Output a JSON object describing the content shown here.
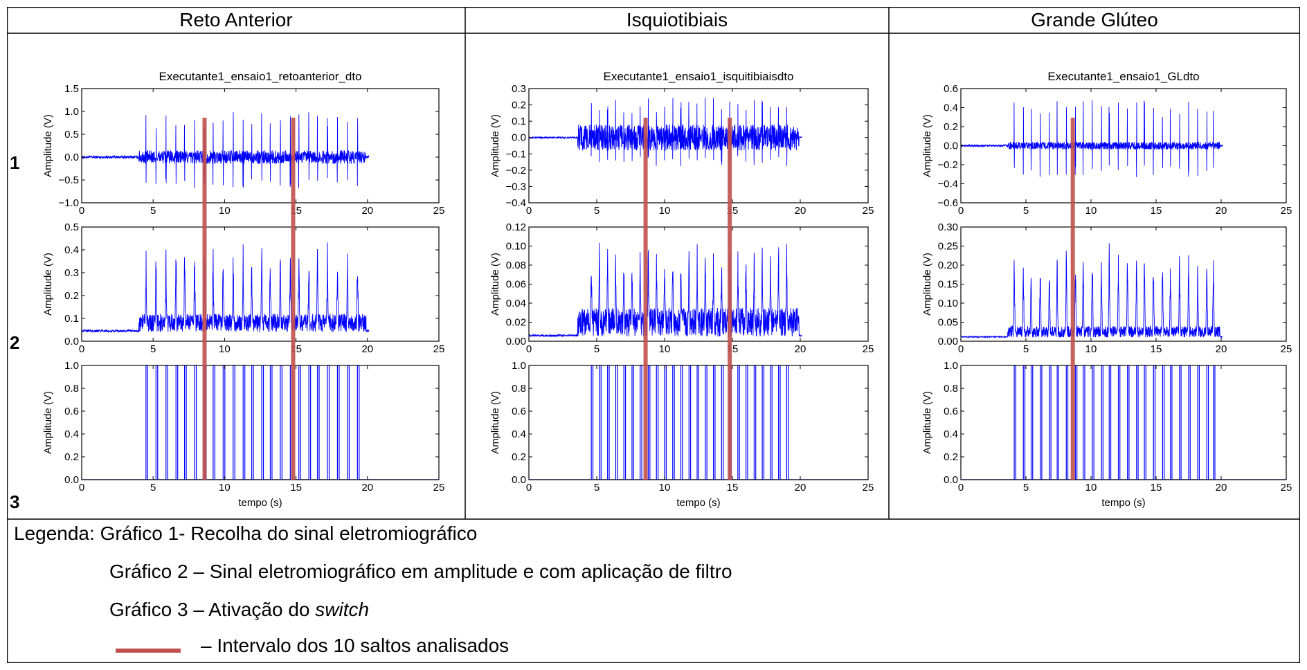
{
  "headers": [
    "Reto Anterior",
    "Isquiotibiais",
    "Grande Glúteo"
  ],
  "row_numbers": [
    "1",
    "2",
    "3"
  ],
  "legend": {
    "line1": "Legenda: Gráfico 1- Recolha do sinal eletromiográfico",
    "line2": "Gráfico 2 – Sinal eletromiográfico em amplitude e com aplicação de filtro",
    "line3_prefix": "Gráfico 3 – Ativação do ",
    "line3_italic": "switch",
    "line4": "– Intervalo dos 10 saltos analisados",
    "marker_color": "#c0504d"
  },
  "colors": {
    "signal": "#0000ff",
    "marker": "#c0504d",
    "border": "#000000"
  },
  "chart_data": [
    {
      "type": "line",
      "muscle": "Reto Anterior",
      "title": "Executante1_ensaio1_retoanterior_dto",
      "xlabel": "tempo (s)",
      "ylabel": "Amplitude (V)",
      "xlim": [
        0,
        25
      ],
      "xticks": [
        "0",
        "5",
        "10",
        "15",
        "20",
        "25"
      ],
      "markers_x": [
        8.6,
        14.8
      ],
      "onset": 4.0,
      "end": 20.1,
      "jump_times": [
        4.5,
        5.2,
        5.9,
        6.6,
        7.2,
        7.9,
        8.6,
        9.2,
        9.9,
        10.6,
        11.3,
        11.9,
        12.6,
        13.2,
        13.9,
        14.6,
        15.2,
        15.9,
        16.5,
        17.2,
        17.9,
        18.6,
        19.3
      ],
      "panels": [
        {
          "name": "raw emg",
          "ylim": [
            -1.0,
            1.5
          ],
          "yticks": [
            "1.5",
            "1.0",
            "0.5",
            "0.0",
            "−0.5",
            "−1.0"
          ],
          "baseline": 0.0,
          "noise_pre": 0.03,
          "noise_active": 0.15,
          "peak": 1.0
        },
        {
          "name": "envelope",
          "ylim": [
            0.0,
            0.5
          ],
          "yticks": [
            "0.5",
            "0.4",
            "0.3",
            "0.2",
            "0.1",
            "0.0"
          ],
          "baseline": 0.04,
          "noise_pre": 0.01,
          "noise_active": 0.08,
          "peak": 0.45
        },
        {
          "name": "switch",
          "ylim": [
            0.0,
            1.0
          ],
          "yticks": [
            "1.0",
            "0.8",
            "0.6",
            "0.4",
            "0.2",
            "0.0"
          ],
          "switch_high": 1.0
        }
      ]
    },
    {
      "type": "line",
      "muscle": "Isquiotibiais",
      "title": "Executante1_ensaio1_isquitibiaisdto",
      "xlabel": "tempo (s)",
      "ylabel": "Amplitude (V)",
      "xlim": [
        0,
        25
      ],
      "xticks": [
        "0",
        "5",
        "10",
        "15",
        "20",
        "25"
      ],
      "markers_x": [
        8.6,
        14.8
      ],
      "onset": 3.6,
      "end": 20.1,
      "jump_times": [
        4.6,
        5.2,
        5.8,
        6.4,
        7.0,
        7.6,
        8.2,
        8.8,
        9.4,
        10.0,
        10.6,
        11.2,
        11.8,
        12.4,
        13.0,
        13.6,
        14.2,
        14.8,
        15.4,
        16.0,
        16.6,
        17.2,
        17.8,
        18.4,
        19.0
      ],
      "panels": [
        {
          "name": "raw emg",
          "ylim": [
            -0.4,
            0.3
          ],
          "yticks": [
            "0.3",
            "0.2",
            "0.1",
            "0.0",
            "−0.1",
            "−0.2",
            "−0.3",
            "−0.4"
          ],
          "baseline": 0.0,
          "noise_pre": 0.005,
          "noise_active": 0.08,
          "peak": 0.25
        },
        {
          "name": "envelope",
          "ylim": [
            0.0,
            0.12
          ],
          "yticks": [
            "0.12",
            "0.10",
            "0.08",
            "0.06",
            "0.04",
            "0.02",
            "0.00"
          ],
          "baseline": 0.005,
          "noise_pre": 0.002,
          "noise_active": 0.03,
          "peak": 0.11
        },
        {
          "name": "switch",
          "ylim": [
            0.0,
            1.0
          ],
          "yticks": [
            "1.0",
            "0.8",
            "0.6",
            "0.4",
            "0.2",
            "0.0"
          ],
          "switch_high": 1.0
        }
      ]
    },
    {
      "type": "line",
      "muscle": "Grande Glúteo",
      "title": "Executante1_ensaio1_GLdto",
      "xlabel": "tempo (s)",
      "ylabel": "Amplitude (V)",
      "xlim": [
        0,
        25
      ],
      "xticks": [
        "0",
        "5",
        "10",
        "15",
        "20",
        "25"
      ],
      "markers_x": [
        8.6
      ],
      "onset": 3.6,
      "end": 20.1,
      "jump_times": [
        4.1,
        4.8,
        5.4,
        6.1,
        6.8,
        7.4,
        8.1,
        8.8,
        9.4,
        10.1,
        10.8,
        11.4,
        12.1,
        12.8,
        13.5,
        14.1,
        14.8,
        15.5,
        16.1,
        16.8,
        17.5,
        18.2,
        18.9,
        19.4
      ],
      "panels": [
        {
          "name": "raw emg",
          "ylim": [
            -0.6,
            0.6
          ],
          "yticks": [
            "0.6",
            "0.4",
            "0.2",
            "0.0",
            "−0.2",
            "−0.4",
            "−0.6"
          ],
          "baseline": 0.0,
          "noise_pre": 0.01,
          "noise_active": 0.04,
          "peak": 0.48
        },
        {
          "name": "envelope",
          "ylim": [
            0.0,
            0.3
          ],
          "yticks": [
            "0.30",
            "0.25",
            "0.20",
            "0.15",
            "0.10",
            "0.05",
            "0.00"
          ],
          "baseline": 0.01,
          "noise_pre": 0.003,
          "noise_active": 0.03,
          "peak": 0.26
        },
        {
          "name": "switch",
          "ylim": [
            0.0,
            1.0
          ],
          "yticks": [
            "1.0",
            "0.8",
            "0.6",
            "0.4",
            "0.2",
            "0.0"
          ],
          "switch_high": 1.0
        }
      ]
    }
  ]
}
